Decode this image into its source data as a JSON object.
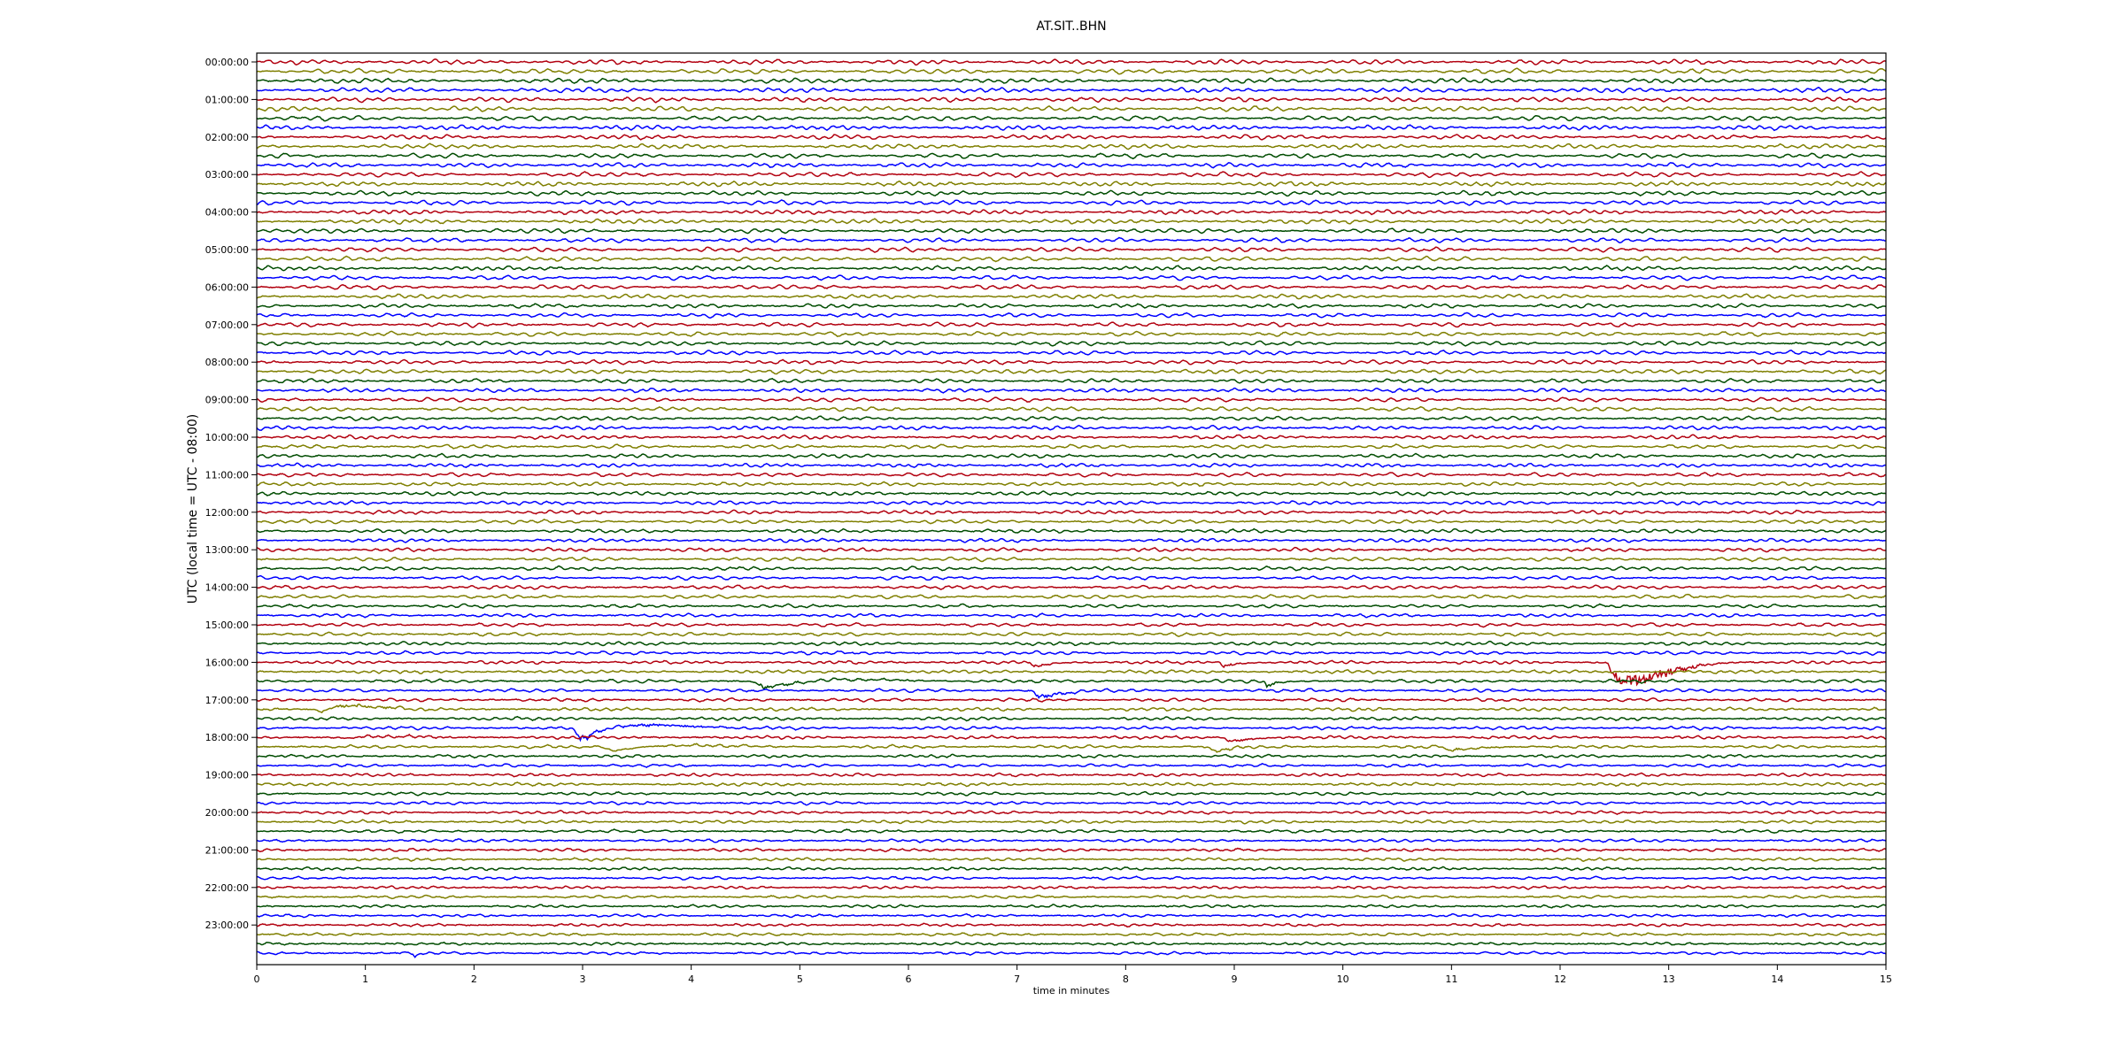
{
  "chart_data": {
    "type": "line",
    "title": "AT.SIT..BHN",
    "xlabel": "time in minutes",
    "ylabel": "UTC (local time = UTC - 08:00)",
    "xlim": [
      0,
      15
    ],
    "x_ticks": [
      0,
      1,
      2,
      3,
      4,
      5,
      6,
      7,
      8,
      9,
      10,
      11,
      12,
      13,
      14,
      15
    ],
    "trace_count": 96,
    "minutes_per_trace": 15,
    "trace_colors": [
      "#b2000f",
      "#7f7f00",
      "#004c00",
      "#0000ff"
    ],
    "y_tick_labels": [
      "00:00:00",
      "01:00:00",
      "02:00:00",
      "03:00:00",
      "04:00:00",
      "05:00:00",
      "06:00:00",
      "07:00:00",
      "08:00:00",
      "09:00:00",
      "10:00:00",
      "11:00:00",
      "12:00:00",
      "13:00:00",
      "14:00:00",
      "15:00:00",
      "16:00:00",
      "17:00:00",
      "18:00:00",
      "19:00:00",
      "20:00:00",
      "21:00:00",
      "22:00:00",
      "23:00:00"
    ],
    "events": [
      {
        "trace": 64,
        "minute": 12.5,
        "amplitude": 4.5,
        "duration": 0.35
      },
      {
        "trace": 64,
        "minute": 7.15,
        "amplitude": 0.5,
        "duration": 0.15
      },
      {
        "trace": 64,
        "minute": 8.9,
        "amplitude": 0.4,
        "duration": 0.15
      },
      {
        "trace": 66,
        "minute": 4.7,
        "amplitude": 0.8,
        "duration": 0.6
      },
      {
        "trace": 66,
        "minute": 9.3,
        "amplitude": 0.6,
        "duration": 0.1
      },
      {
        "trace": 67,
        "minute": 7.2,
        "amplitude": 0.7,
        "duration": 0.3
      },
      {
        "trace": 69,
        "minute": 0.6,
        "amplitude": 2.2,
        "duration": 0.25
      },
      {
        "trace": 69,
        "minute": 14.9,
        "amplitude": 0.6,
        "duration": 0.1
      },
      {
        "trace": 71,
        "minute": 3.0,
        "amplitude": 1.8,
        "duration": 0.45
      },
      {
        "trace": 72,
        "minute": 0.85,
        "amplitude": 0.6,
        "duration": 0.3
      },
      {
        "trace": 72,
        "minute": 8.95,
        "amplitude": 0.5,
        "duration": 0.2
      },
      {
        "trace": 73,
        "minute": 3.3,
        "amplitude": 0.6,
        "duration": 0.6
      },
      {
        "trace": 73,
        "minute": 8.8,
        "amplitude": 0.6,
        "duration": 0.15
      },
      {
        "trace": 73,
        "minute": 10.95,
        "amplitude": 0.6,
        "duration": 0.2
      },
      {
        "trace": 87,
        "minute": 13.15,
        "amplitude": 0.5,
        "duration": 0.05
      },
      {
        "trace": 95,
        "minute": 1.45,
        "amplitude": 1.5,
        "duration": 0.03
      }
    ]
  }
}
